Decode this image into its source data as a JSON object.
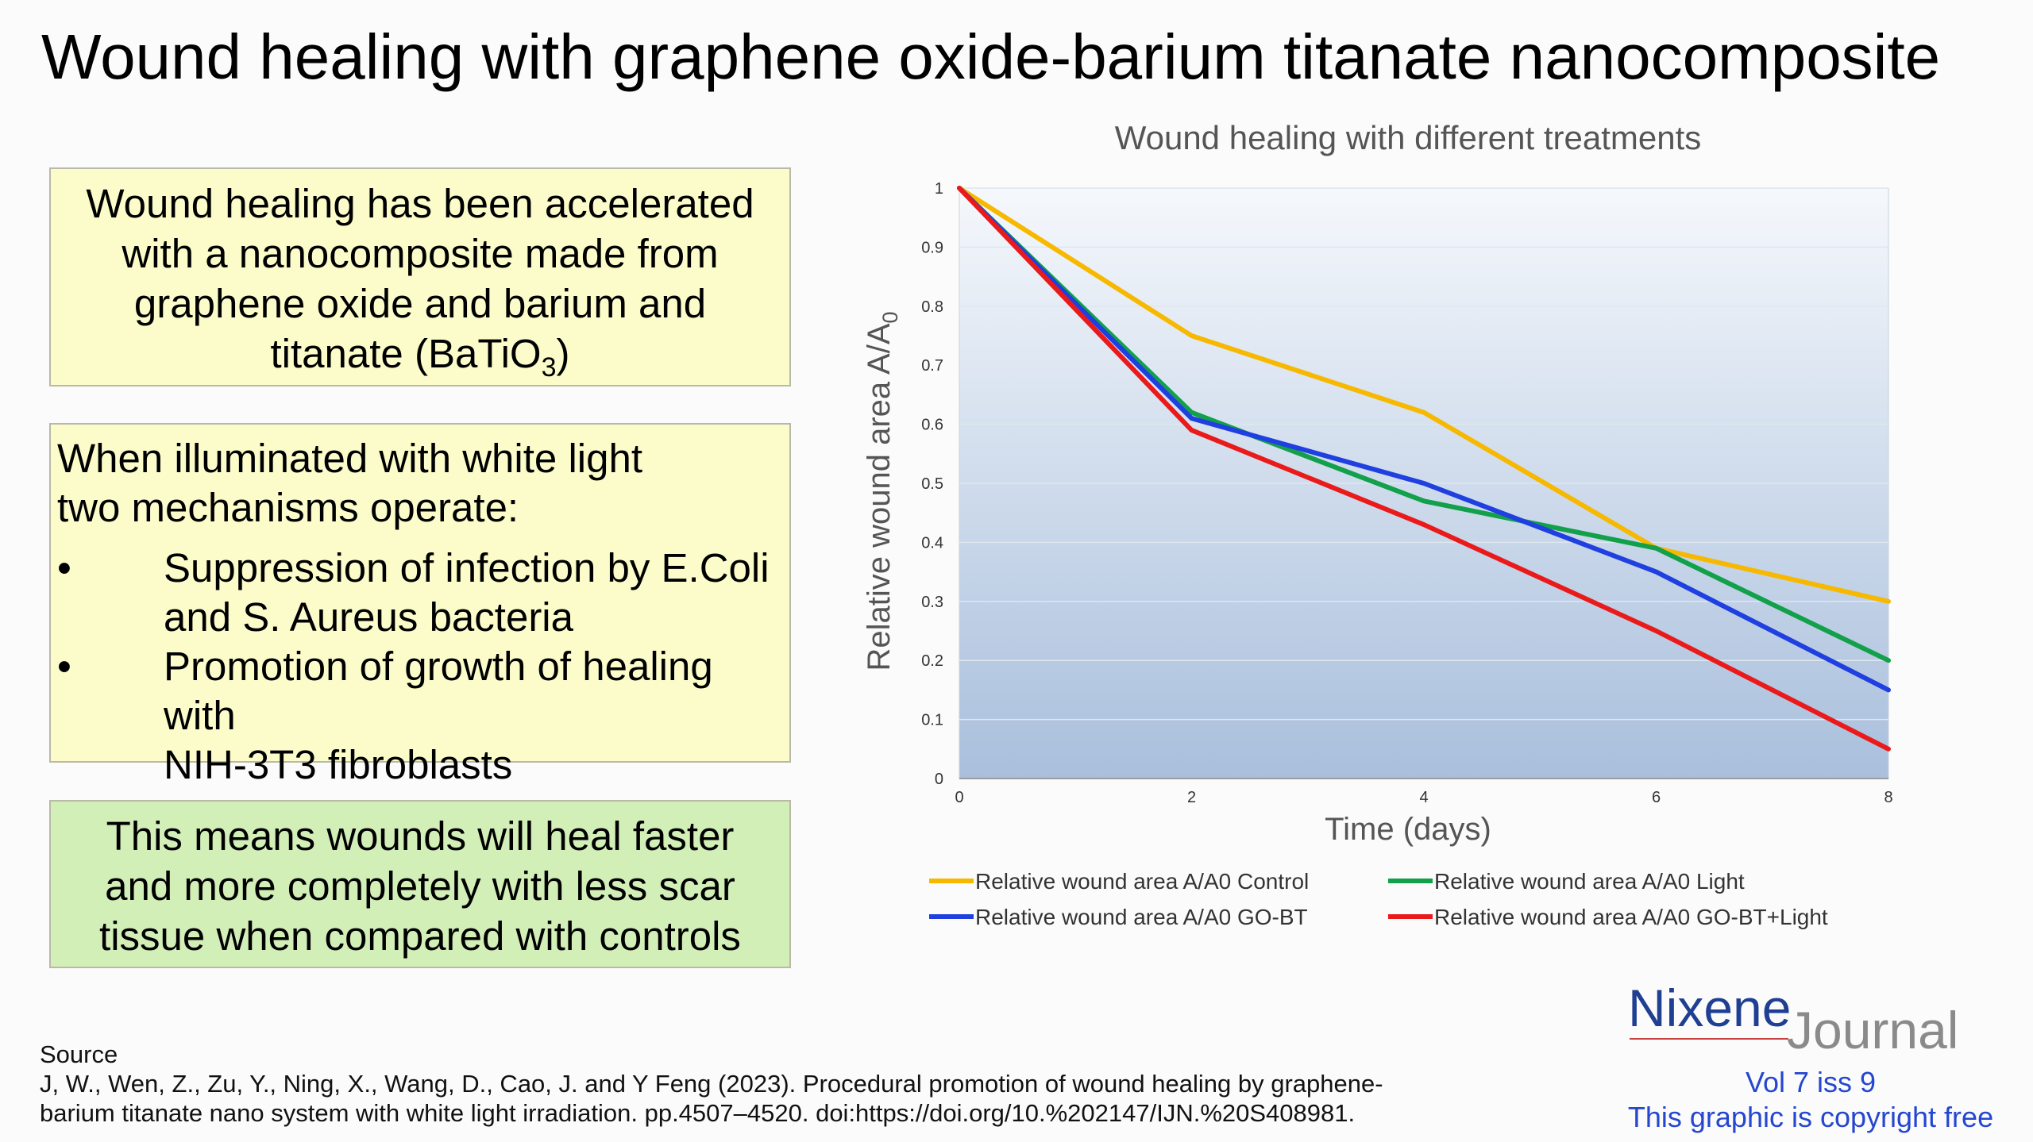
{
  "slide": {
    "title": "Wound healing with graphene oxide-barium titanate nanocomposite"
  },
  "intro_box": {
    "lines": [
      "Wound healing has been accelerated",
      "with a nanocomposite made from",
      "graphene oxide and  barium and"
    ],
    "formula_prefix": "titanate (BaTiO",
    "formula_sub": "3",
    "formula_suffix": ")"
  },
  "mechanisms_box": {
    "intro_lines": [
      "When illuminated with white light",
      "two mechanisms operate:"
    ],
    "bullet_char": "•",
    "bullets": [
      {
        "line1": "Suppression of infection by E.Coli",
        "line2": "and S. Aureus bacteria"
      },
      {
        "line1": "Promotion of growth of healing with",
        "line2": "NIH-3T3 fibroblasts"
      }
    ],
    "background": "#fbfcc9"
  },
  "conclusion_box": {
    "lines": [
      "This means wounds will heal faster",
      "and more completely with less scar",
      "tissue when compared with controls"
    ],
    "background": "#d3efb8"
  },
  "chart_data": {
    "type": "line",
    "title": "Wound healing with different treatments",
    "xlabel": "Time (days)",
    "ylabel_main": "Relative wound area A/A",
    "ylabel_sub": "0",
    "x": [
      0,
      2,
      4,
      6,
      8
    ],
    "xlim": [
      0,
      8
    ],
    "ylim": [
      0,
      1
    ],
    "x_ticks": [
      "0",
      "2",
      "4",
      "6",
      "8"
    ],
    "y_ticks": [
      "0",
      "0.1",
      "0.2",
      "0.3",
      "0.4",
      "0.5",
      "0.6",
      "0.7",
      "0.8",
      "0.9",
      "1"
    ],
    "grid": true,
    "legend_position": "bottom",
    "series": [
      {
        "name": "Relative wound area A/A0 Control",
        "color": "#f7b800",
        "values": [
          1.0,
          0.75,
          0.62,
          0.39,
          0.3
        ]
      },
      {
        "name": "Relative wound area A/A0 Light",
        "color": "#12a04a",
        "values": [
          1.0,
          0.62,
          0.47,
          0.39,
          0.2
        ]
      },
      {
        "name": "Relative wound area A/A0 GO-BT",
        "color": "#1f3fe0",
        "values": [
          1.0,
          0.61,
          0.5,
          0.35,
          0.15
        ]
      },
      {
        "name": "Relative wound area A/A0 GO-BT+Light",
        "color": "#ea1a1a",
        "values": [
          1.0,
          0.59,
          0.43,
          0.25,
          0.05
        ]
      }
    ]
  },
  "source": {
    "heading": "Source",
    "lines": [
      "J, W., Wen, Z., Zu, Y., Ning, X., Wang, D., Cao, J. and Y Feng (2023). Procedural promotion of wound healing by graphene-",
      "barium titanate nano system with white light irradiation. pp.4507–4520. doi:https://doi.org/10.%202147/IJN.%20S408981."
    ]
  },
  "brand": {
    "name": "Nixene",
    "journal": "Journal",
    "volume": "Vol 7 iss 9",
    "copyright": "This graphic is copyright free",
    "name_color": "#1f3f93",
    "journal_color": "#8a8a8a",
    "accent_color": "#2547d0"
  }
}
